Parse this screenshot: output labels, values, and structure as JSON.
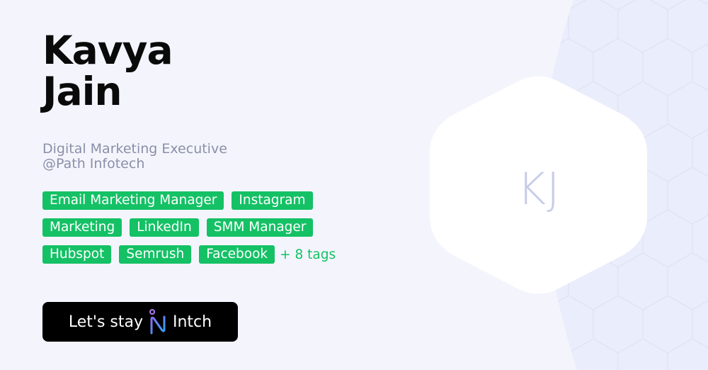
{
  "profile": {
    "first_name": "Kavya",
    "last_name": "Jain",
    "title": "Digital Marketing Executive",
    "company": "@Path Infotech",
    "initials": "KJ"
  },
  "tags": [
    [
      "Email Marketing Manager",
      "Instagram"
    ],
    [
      "Marketing",
      "LinkedIn",
      "SMM Manager"
    ],
    [
      "Hubspot",
      "Semrush",
      "Facebook"
    ]
  ],
  "more_tags": "+ 8 tags",
  "cta": {
    "label": "Let's stay",
    "brand": "Intch"
  },
  "colors": {
    "tag": "#14c165",
    "background": "#f4f5fc",
    "pattern": "#eaedfb"
  }
}
